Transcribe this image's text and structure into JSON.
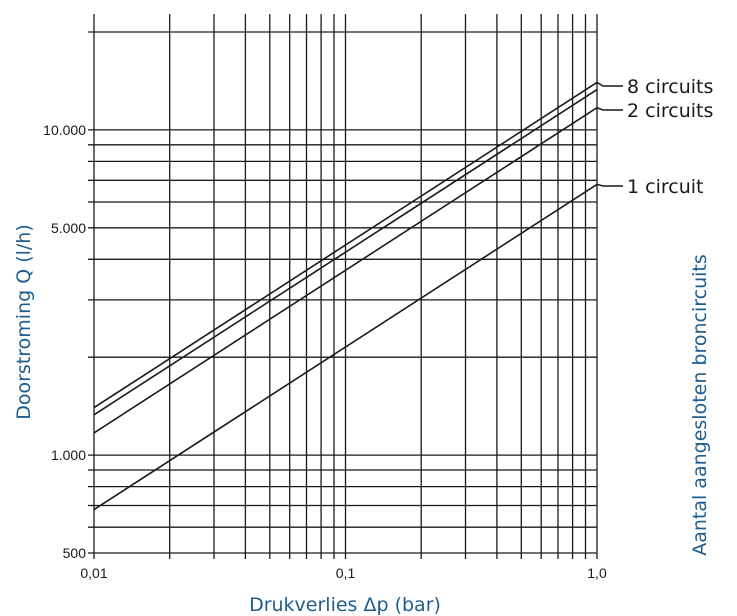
{
  "chart_data": {
    "type": "line",
    "xscale": "log",
    "yscale": "log",
    "xlim": [
      0.01,
      1.0
    ],
    "ylim": [
      500,
      20000
    ],
    "grid": true,
    "xlabel": "Drukverlies Δp (bar)",
    "ylabel": "Doorstroming Q (l/h)",
    "right_label": "Aantal aangesloten broncircuits",
    "x_ticks": [
      {
        "value": 0.01,
        "label": "0,01"
      },
      {
        "value": 0.1,
        "label": "0,1"
      },
      {
        "value": 1.0,
        "label": "1,0"
      }
    ],
    "y_ticks": [
      {
        "value": 500,
        "label": "500"
      },
      {
        "value": 1000,
        "label": "1.000"
      },
      {
        "value": 5000,
        "label": "5.000"
      },
      {
        "value": 10000,
        "label": "10.000"
      }
    ],
    "x_grid": [
      0.01,
      0.02,
      0.03,
      0.04,
      0.05,
      0.06,
      0.07,
      0.08,
      0.09,
      0.1,
      0.2,
      0.3,
      0.4,
      0.5,
      0.6,
      0.7,
      0.8,
      0.9,
      1.0
    ],
    "y_grid": [
      500,
      600,
      700,
      800,
      900,
      1000,
      2000,
      3000,
      4000,
      5000,
      6000,
      7000,
      8000,
      9000,
      10000,
      20000
    ],
    "series": [
      {
        "name": "8 circuits",
        "x": [
          0.01,
          1.0
        ],
        "y": [
          1400,
          14000
        ],
        "labeled": true
      },
      {
        "name": "",
        "x": [
          0.01,
          1.0
        ],
        "y": [
          1330,
          13300
        ],
        "labeled": false
      },
      {
        "name": "2 circuits",
        "x": [
          0.01,
          1.0
        ],
        "y": [
          1170,
          11700
        ],
        "labeled": true
      },
      {
        "name": "1 circuit",
        "x": [
          0.01,
          1.0
        ],
        "y": [
          680,
          6800
        ],
        "labeled": true
      }
    ]
  }
}
